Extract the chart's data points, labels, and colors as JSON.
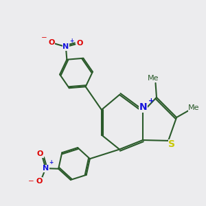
{
  "bg_color": "#ececee",
  "bond_color": "#2a5a2a",
  "bond_width": 1.5,
  "dbo": 0.07,
  "colors": {
    "N": "#1515dd",
    "S": "#c8c800",
    "O": "#dd0000",
    "C": "#2a5a2a"
  },
  "fs": 8.5,
  "fs_small": 7.5
}
